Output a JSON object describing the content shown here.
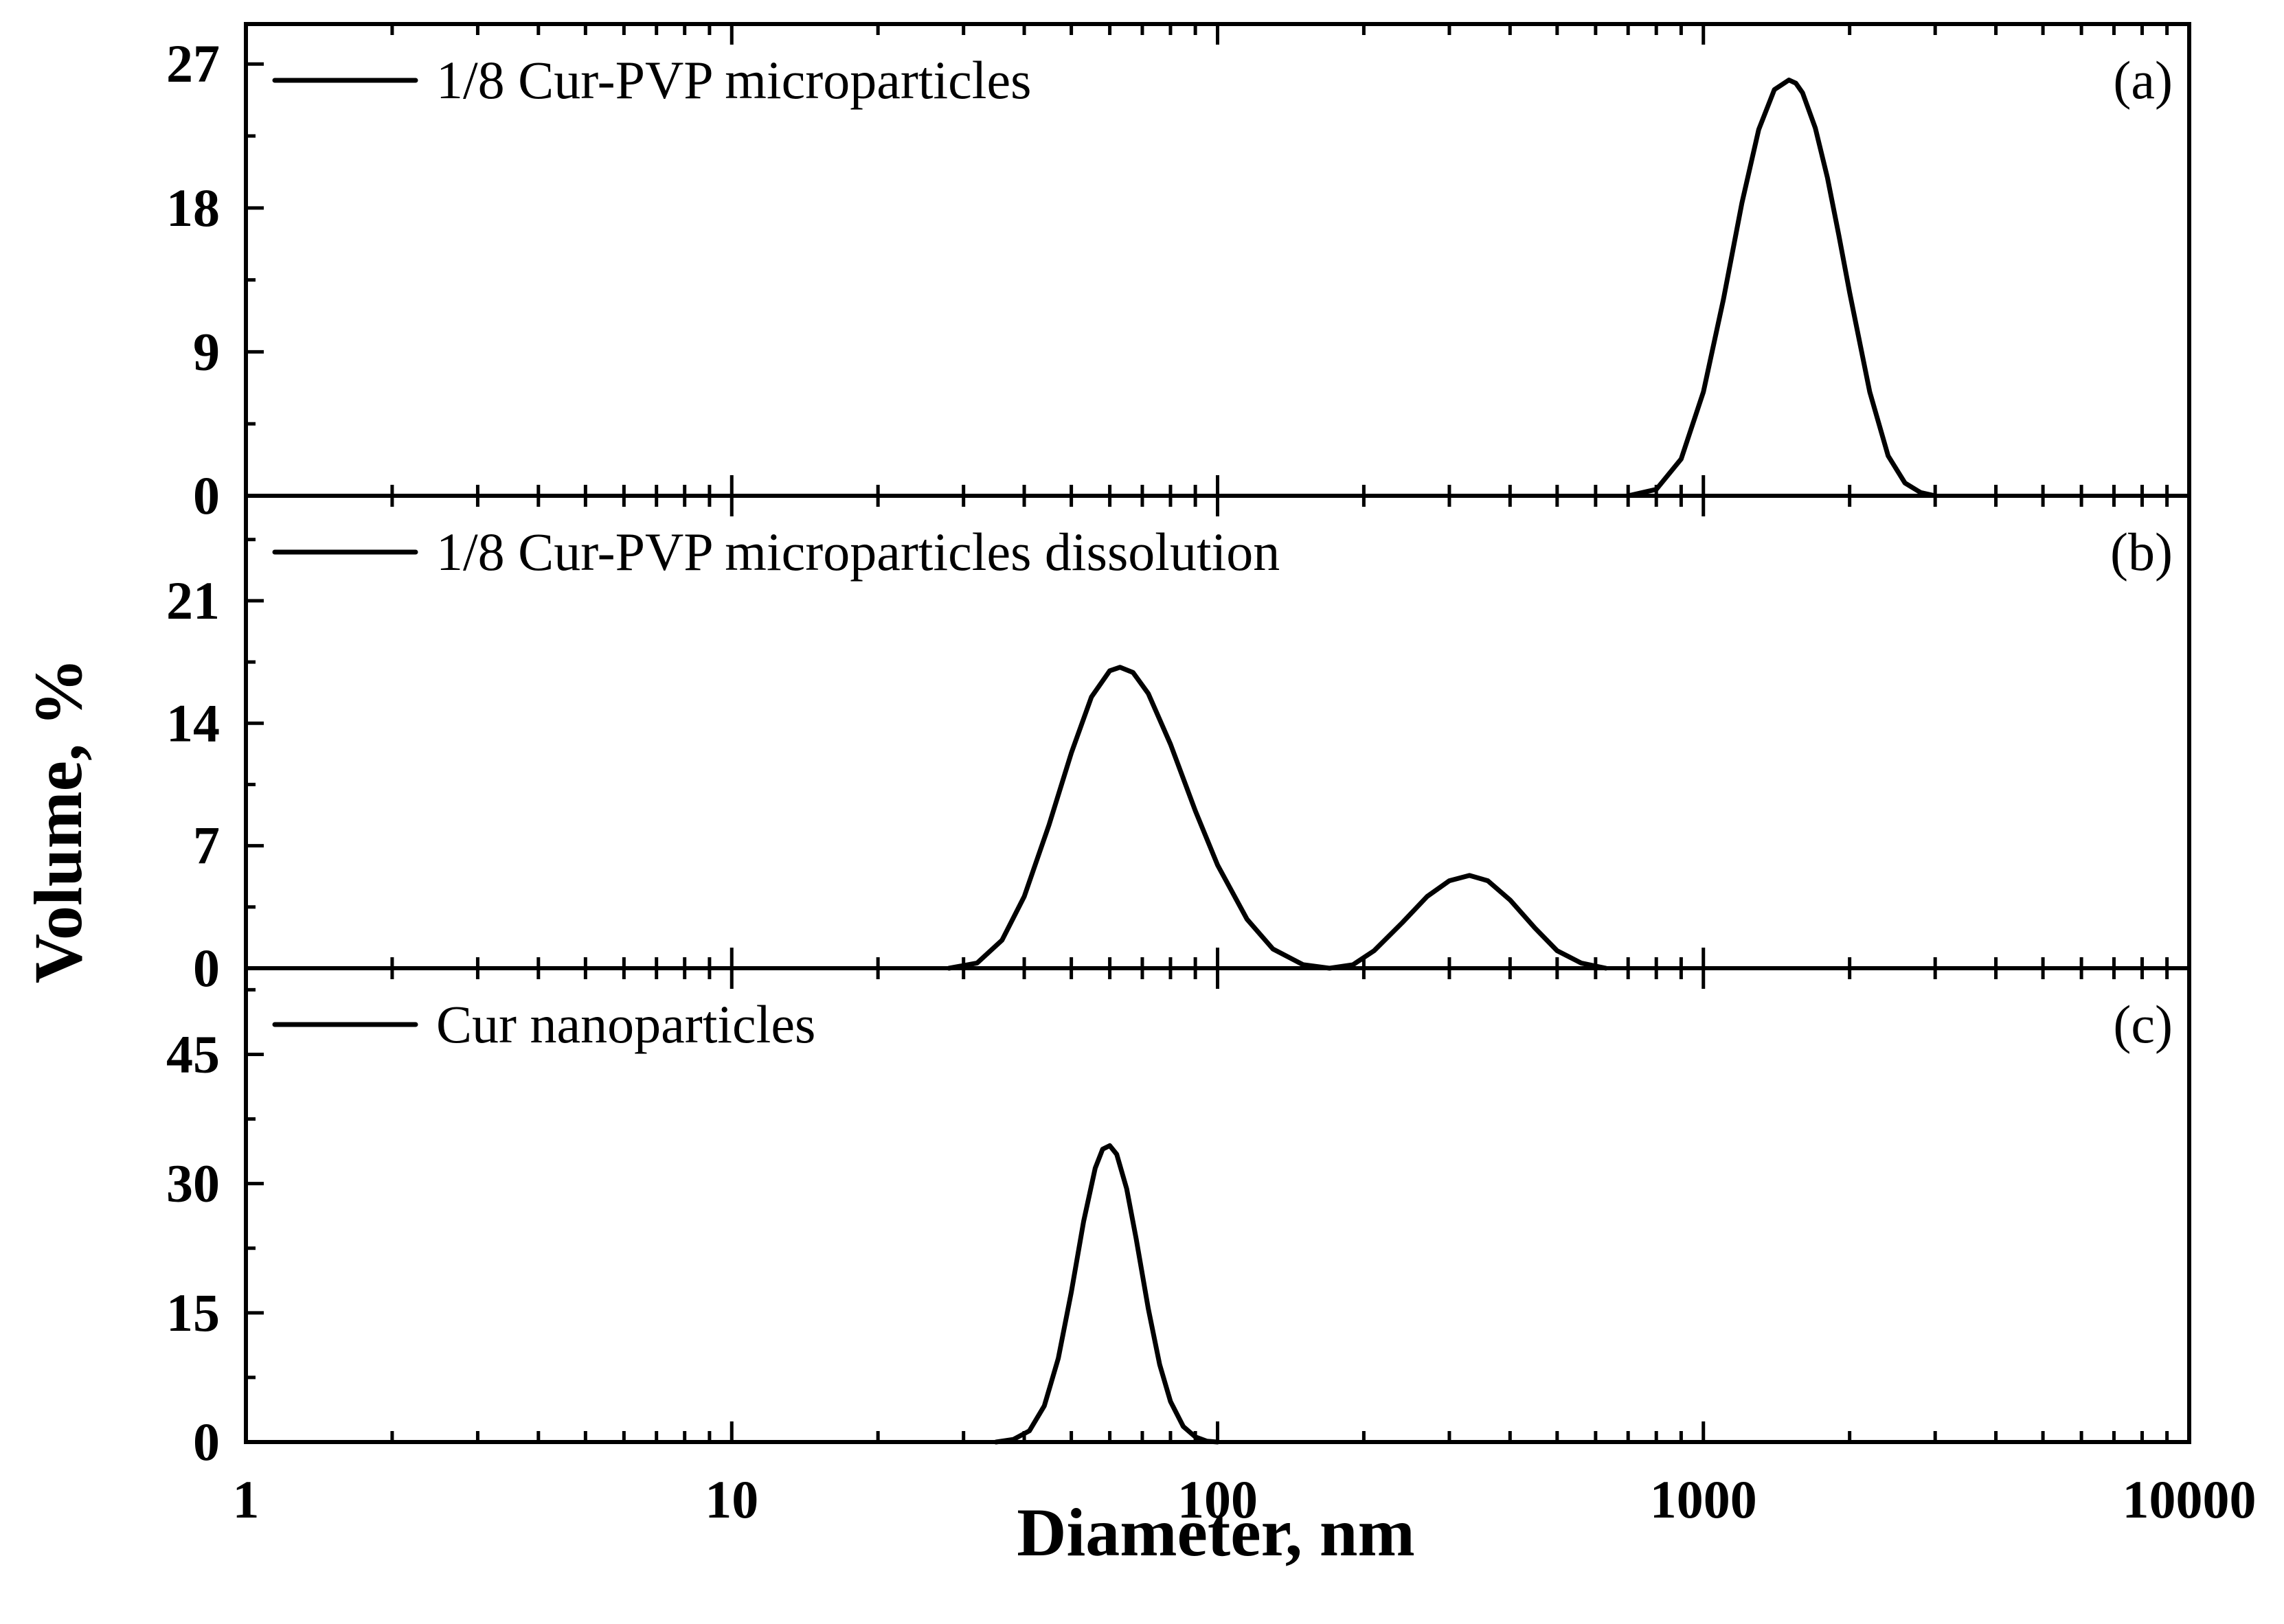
{
  "chart_data": {
    "type": "line",
    "xlabel": "Diameter, nm",
    "ylabel": "Volume, %",
    "x_scale": "log",
    "xlim": [
      1,
      10000
    ],
    "x_ticks": [
      1,
      10,
      100,
      1000,
      10000
    ],
    "x_tick_labels": [
      "1",
      "10",
      "100",
      "1000",
      "10000"
    ],
    "panels": [
      {
        "id": "a",
        "panel_label": "(a)",
        "legend": "1/8 Cur-PVP microparticles",
        "ylim": [
          0,
          29.5
        ],
        "y_ticks": [
          0,
          9,
          18,
          27
        ],
        "y_tick_labels": [
          "0",
          "9",
          "18",
          "27"
        ],
        "x": [
          700,
          800,
          900,
          1000,
          1100,
          1200,
          1300,
          1400,
          1500,
          1550,
          1600,
          1700,
          1800,
          1900,
          2000,
          2200,
          2400,
          2600,
          2800,
          3000
        ],
        "y": [
          0,
          0.4,
          2.3,
          6.5,
          12.3,
          18.3,
          22.9,
          25.4,
          26.0,
          25.8,
          25.2,
          23.0,
          19.9,
          16.3,
          12.7,
          6.5,
          2.5,
          0.8,
          0.2,
          0
        ]
      },
      {
        "id": "b",
        "panel_label": "(b)",
        "legend": "1/8 Cur-PVP microparticles dissolution",
        "ylim": [
          0,
          27
        ],
        "y_ticks": [
          0,
          7,
          14,
          21
        ],
        "y_tick_labels": [
          "0",
          "7",
          "14",
          "21"
        ],
        "x": [
          28,
          32,
          36,
          40,
          45,
          50,
          55,
          60,
          63,
          67,
          72,
          80,
          90,
          100,
          115,
          130,
          150,
          170,
          190,
          210,
          240,
          270,
          300,
          330,
          360,
          400,
          450,
          500,
          560,
          630
        ],
        "y": [
          0,
          0.3,
          1.6,
          4.1,
          8.2,
          12.3,
          15.5,
          17.0,
          17.2,
          16.9,
          15.7,
          12.8,
          9.0,
          5.9,
          2.8,
          1.1,
          0.2,
          0,
          0.2,
          1.0,
          2.6,
          4.1,
          5.0,
          5.3,
          5.0,
          3.9,
          2.3,
          1.0,
          0.3,
          0
        ]
      },
      {
        "id": "c",
        "panel_label": "(c)",
        "legend": "Cur nanoparticles",
        "ylim": [
          0,
          55
        ],
        "y_ticks": [
          0,
          15,
          30,
          45
        ],
        "y_tick_labels": [
          "0",
          "15",
          "30",
          "45"
        ],
        "x": [
          35,
          38,
          41,
          44,
          47,
          50,
          53,
          56,
          58,
          60,
          62,
          65,
          68,
          72,
          76,
          80,
          85,
          90,
          95,
          100
        ],
        "y": [
          0,
          0.3,
          1.3,
          4.2,
          9.7,
          17.4,
          25.6,
          31.8,
          34.0,
          34.4,
          33.4,
          29.4,
          23.6,
          15.5,
          9.0,
          4.7,
          1.8,
          0.6,
          0.1,
          0
        ]
      }
    ]
  }
}
